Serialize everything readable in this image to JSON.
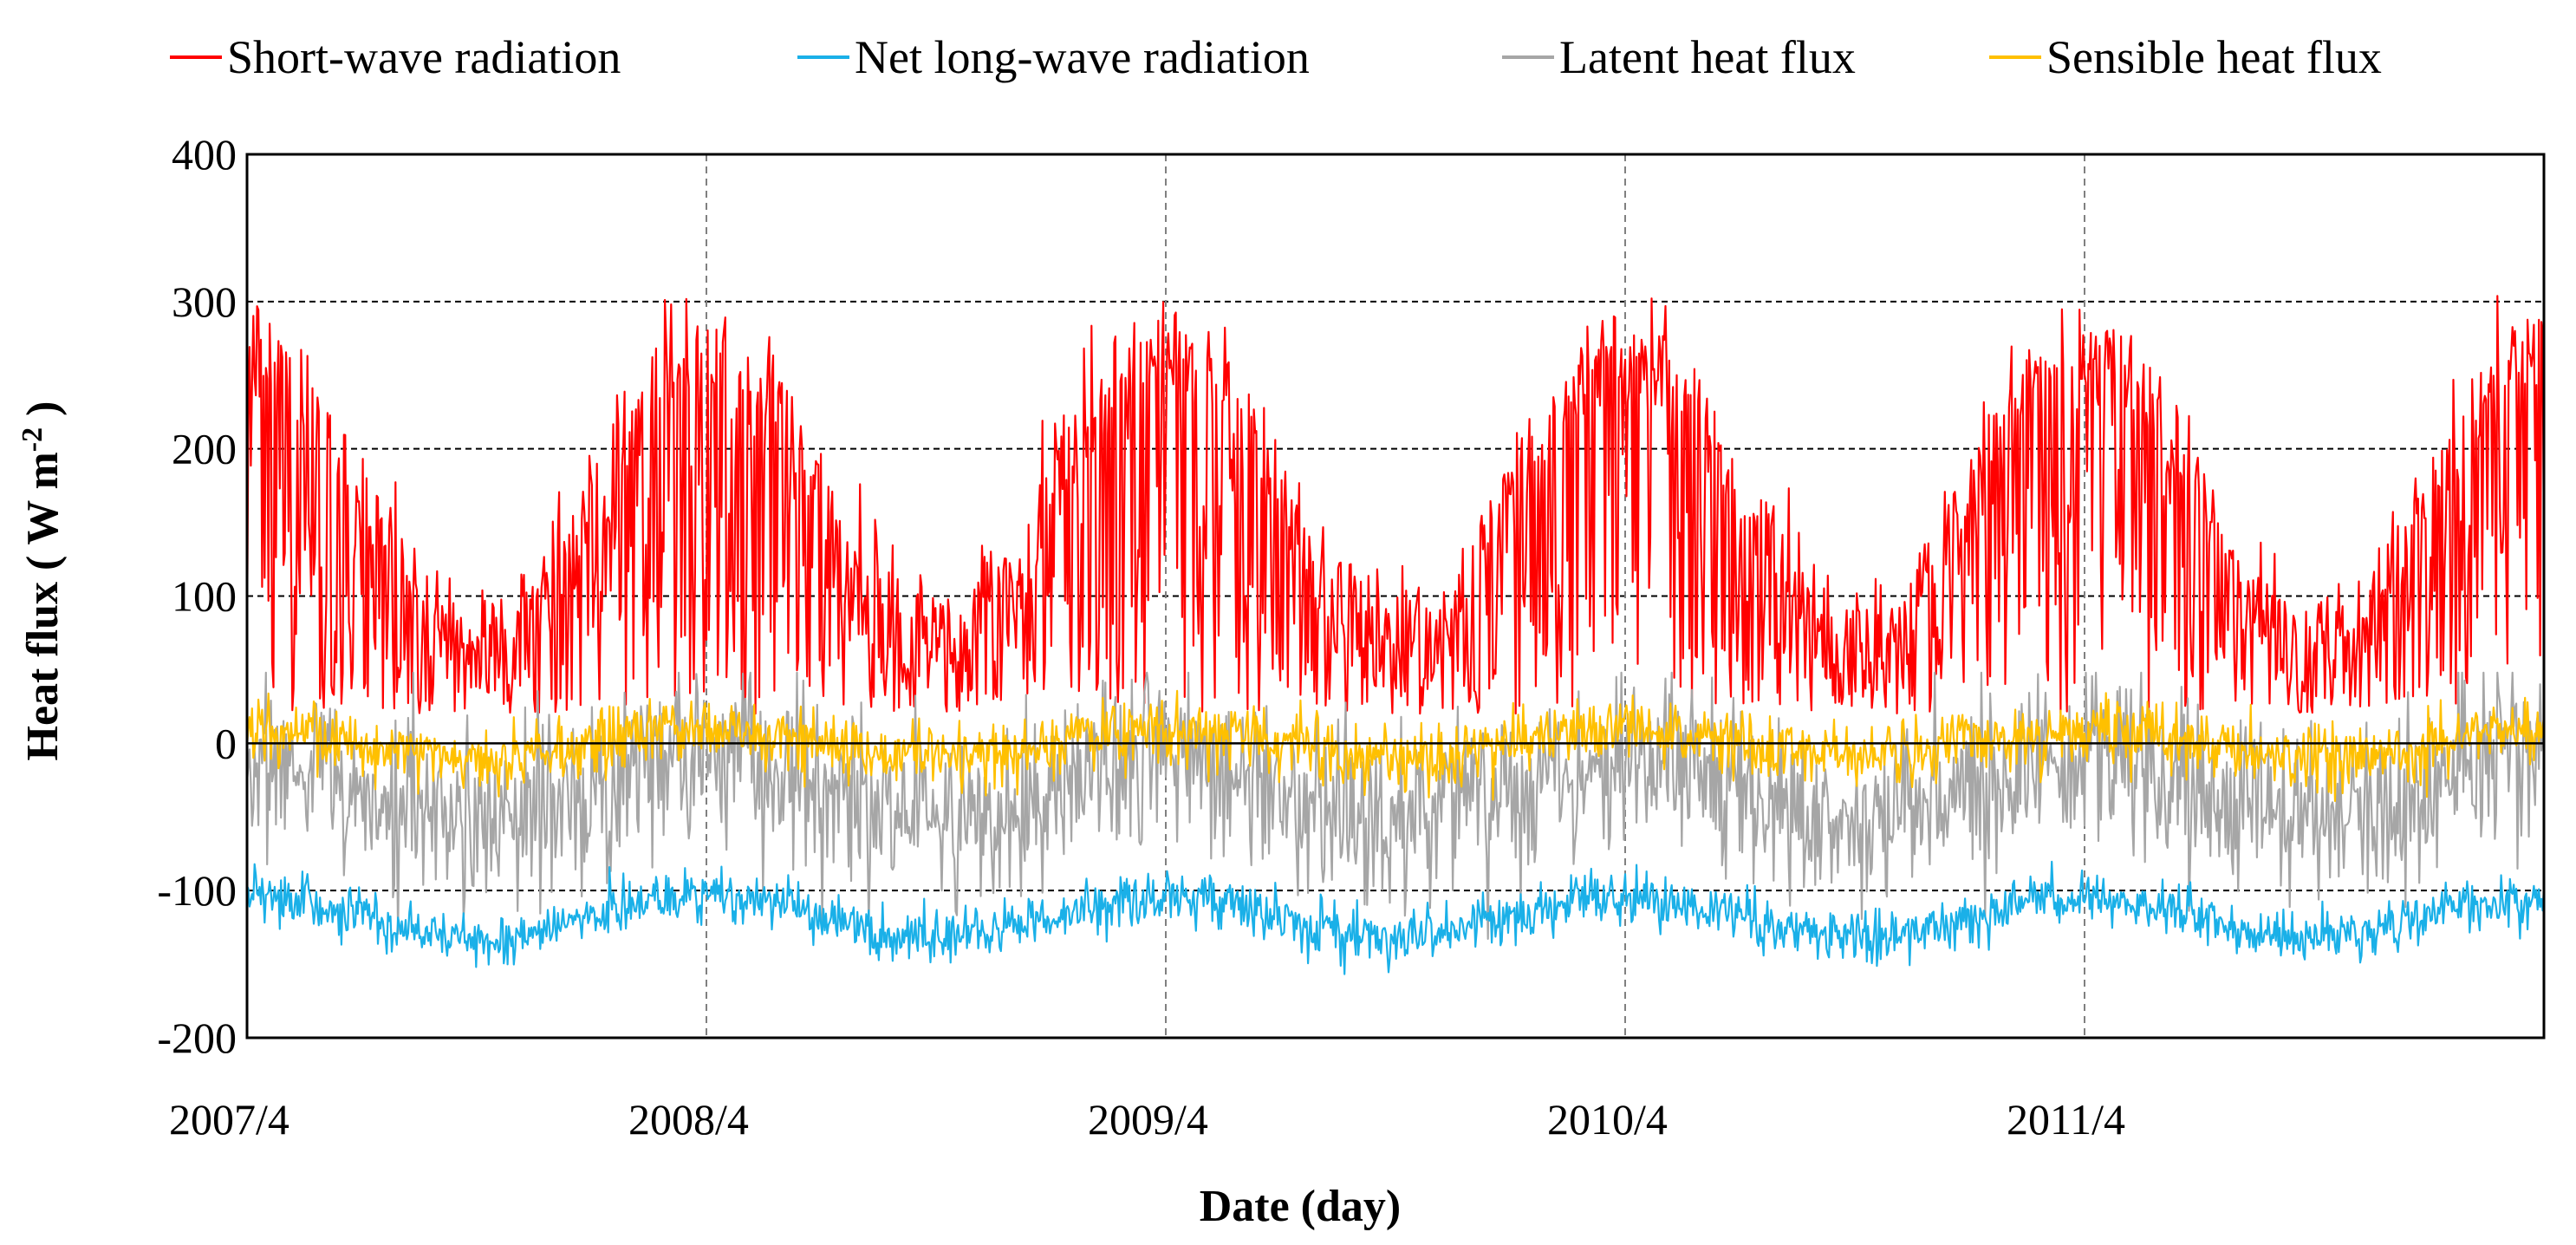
{
  "chart_data": {
    "type": "line",
    "title": "",
    "xlabel": "Date (day)",
    "ylabel_main": "Heat flux ( W m",
    "ylabel_sup": "-2",
    "ylabel_close": " )",
    "ylim": [
      -200,
      400
    ],
    "yticks": [
      400,
      300,
      200,
      100,
      0,
      -100,
      -200
    ],
    "ytick_labels": [
      "400",
      "300",
      "200",
      "100",
      "0",
      "-100",
      "-200"
    ],
    "xlim_years": [
      2007.25,
      2012.25
    ],
    "xticks": [
      2007.25,
      2008.25,
      2009.25,
      2010.25,
      2011.25
    ],
    "xtick_labels": [
      "2007/4",
      "2008/4",
      "2009/4",
      "2010/4",
      "2011/4"
    ],
    "hgrid_values": [
      300,
      200,
      100,
      -100
    ],
    "vgrid_values": [
      2008.25,
      2009.25,
      2010.25,
      2011.25
    ],
    "legend_position": "top",
    "series": [
      {
        "name": "Short-wave radiation",
        "color": "#ff0000",
        "mean": 170,
        "amp": 95,
        "phase": 0.42,
        "noise": 70,
        "clip_min": 15,
        "clip_max": 325
      },
      {
        "name": "Net long-wave radiation",
        "color": "#1ab0e8",
        "mean": -118,
        "amp": 14,
        "phase": 0.42,
        "noise": 9,
        "clip_min": -170,
        "clip_max": -72
      },
      {
        "name": "Latent heat flux",
        "color": "#a6a6a6",
        "mean": -32,
        "amp": 22,
        "phase": 0.42,
        "noise": 30,
        "clip_min": -170,
        "clip_max": 48
      },
      {
        "name": "Sensible heat flux",
        "color": "#ffc000",
        "mean": 0,
        "amp": 9,
        "phase": 0.42,
        "noise": 11,
        "clip_min": -70,
        "clip_max": 50
      }
    ]
  }
}
